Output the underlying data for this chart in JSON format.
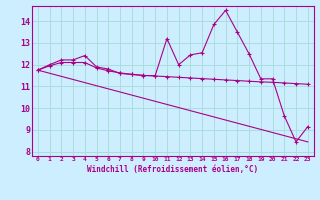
{
  "xlabel": "Windchill (Refroidissement éolien,°C)",
  "background_color": "#cceeff",
  "grid_color": "#aadddd",
  "line_color": "#aa0088",
  "xlim": [
    -0.5,
    23.5
  ],
  "ylim": [
    7.8,
    14.7
  ],
  "yticks": [
    8,
    9,
    10,
    11,
    12,
    13,
    14
  ],
  "xticks": [
    0,
    1,
    2,
    3,
    4,
    5,
    6,
    7,
    8,
    9,
    10,
    11,
    12,
    13,
    14,
    15,
    16,
    17,
    18,
    19,
    20,
    21,
    22,
    23
  ],
  "series1_x": [
    0,
    1,
    2,
    3,
    4,
    5,
    6,
    7,
    8,
    9,
    10,
    11,
    12,
    13,
    14,
    15,
    16,
    17,
    18,
    19,
    20,
    21,
    22,
    23
  ],
  "series1_y": [
    11.75,
    12.0,
    12.22,
    12.22,
    12.42,
    11.9,
    11.8,
    11.6,
    11.55,
    11.5,
    11.5,
    13.2,
    12.0,
    12.45,
    12.55,
    13.85,
    14.5,
    13.5,
    12.5,
    11.35,
    11.35,
    9.65,
    8.45,
    9.15
  ],
  "series2_x": [
    0,
    23
  ],
  "series2_y": [
    11.75,
    8.45
  ],
  "series3_x": [
    0,
    1,
    2,
    3,
    4,
    5,
    6,
    7,
    8,
    9,
    10,
    11,
    12,
    13,
    14,
    15,
    16,
    17,
    18,
    19,
    20,
    21,
    22,
    23
  ],
  "series3_y": [
    11.75,
    11.95,
    12.1,
    12.1,
    12.1,
    11.85,
    11.72,
    11.62,
    11.56,
    11.51,
    11.48,
    11.45,
    11.42,
    11.39,
    11.36,
    11.33,
    11.3,
    11.27,
    11.24,
    11.21,
    11.19,
    11.16,
    11.13,
    11.1
  ]
}
